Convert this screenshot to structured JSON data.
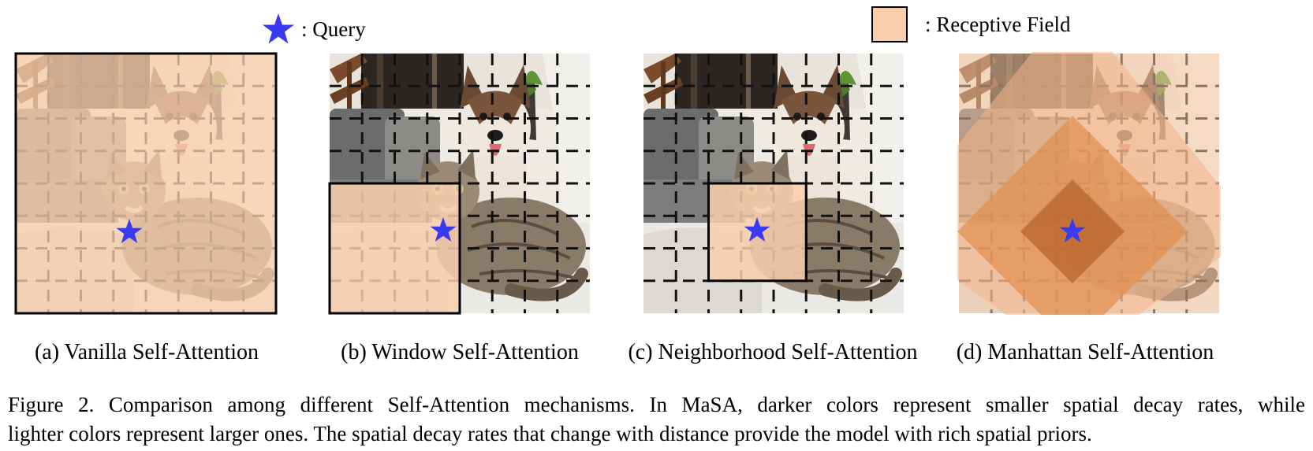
{
  "legend": {
    "query_label": ": Query",
    "receptive_field_label": ": Receptive Field",
    "colors": {
      "star": "#3a3af0",
      "receptive_field": "#f9cfae",
      "grid_dash": "#111111"
    }
  },
  "panels": [
    {
      "id": "a",
      "caption": "(a) Vanilla Self-Attention"
    },
    {
      "id": "b",
      "caption": "(b) Window Self-Attention"
    },
    {
      "id": "c",
      "caption": "(c) Neighborhood Self-Attention"
    },
    {
      "id": "d",
      "caption": "(d) Manhattan Self-Attention"
    }
  ],
  "figure_caption": {
    "line1": "Figure 2.  Comparison among different Self-Attention mechanisms.  In MaSA, darker colors represent smaller spatial decay rates, while",
    "line2": "lighter colors represent larger ones. The spatial decay rates that change with distance provide the model with rich spatial priors."
  }
}
